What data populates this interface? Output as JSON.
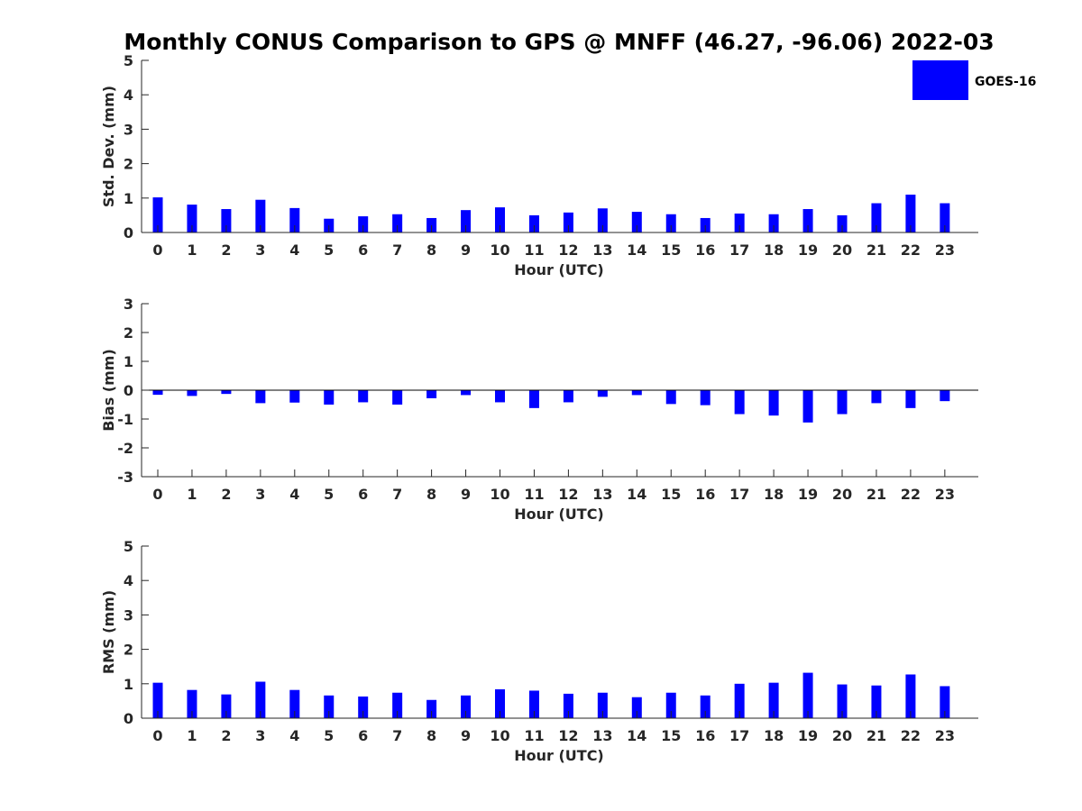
{
  "chart_data": [
    {
      "type": "bar",
      "title": "Monthly CONUS Comparison to GPS @ MNFF (46.27, -96.06) 2022-03",
      "xlabel": "Hour (UTC)",
      "ylabel": "Std. Dev. (mm)",
      "ylim": [
        0,
        5
      ],
      "yticks": [
        0,
        1,
        2,
        3,
        4,
        5
      ],
      "categories": [
        "0",
        "1",
        "2",
        "3",
        "4",
        "5",
        "6",
        "7",
        "8",
        "9",
        "10",
        "11",
        "12",
        "13",
        "14",
        "15",
        "16",
        "17",
        "18",
        "19",
        "20",
        "21",
        "22",
        "23"
      ],
      "series": [
        {
          "name": "GOES-16",
          "color": "#0000ff",
          "values": [
            1.02,
            0.81,
            0.68,
            0.95,
            0.71,
            0.4,
            0.47,
            0.53,
            0.42,
            0.65,
            0.73,
            0.5,
            0.58,
            0.7,
            0.6,
            0.53,
            0.42,
            0.55,
            0.53,
            0.68,
            0.5,
            0.85,
            1.1,
            0.85
          ]
        }
      ]
    },
    {
      "type": "bar",
      "xlabel": "Hour (UTC)",
      "ylabel": "Bias (mm)",
      "ylim": [
        -3,
        3
      ],
      "yticks": [
        -3,
        -2,
        -1,
        0,
        1,
        2,
        3
      ],
      "categories": [
        "0",
        "1",
        "2",
        "3",
        "4",
        "5",
        "6",
        "7",
        "8",
        "9",
        "10",
        "11",
        "12",
        "13",
        "14",
        "15",
        "16",
        "17",
        "18",
        "19",
        "20",
        "21",
        "22",
        "23"
      ],
      "series": [
        {
          "name": "GOES-16",
          "color": "#0000ff",
          "values": [
            -0.16,
            -0.2,
            -0.13,
            -0.45,
            -0.43,
            -0.5,
            -0.42,
            -0.5,
            -0.28,
            -0.17,
            -0.42,
            -0.62,
            -0.42,
            -0.23,
            -0.17,
            -0.48,
            -0.52,
            -0.83,
            -0.88,
            -1.12,
            -0.83,
            -0.45,
            -0.62,
            -0.38
          ]
        }
      ]
    },
    {
      "type": "bar",
      "xlabel": "Hour (UTC)",
      "ylabel": "RMS (mm)",
      "ylim": [
        0,
        5
      ],
      "yticks": [
        0,
        1,
        2,
        3,
        4,
        5
      ],
      "categories": [
        "0",
        "1",
        "2",
        "3",
        "4",
        "5",
        "6",
        "7",
        "8",
        "9",
        "10",
        "11",
        "12",
        "13",
        "14",
        "15",
        "16",
        "17",
        "18",
        "19",
        "20",
        "21",
        "22",
        "23"
      ],
      "series": [
        {
          "name": "GOES-16",
          "color": "#0000ff",
          "values": [
            1.03,
            0.82,
            0.69,
            1.06,
            0.82,
            0.66,
            0.63,
            0.74,
            0.53,
            0.66,
            0.84,
            0.8,
            0.71,
            0.74,
            0.61,
            0.74,
            0.66,
            1.0,
            1.03,
            1.32,
            0.98,
            0.95,
            1.27,
            0.93
          ]
        }
      ]
    }
  ],
  "legend": {
    "label": "GOES-16",
    "color": "#0000ff",
    "position": "top-right"
  }
}
